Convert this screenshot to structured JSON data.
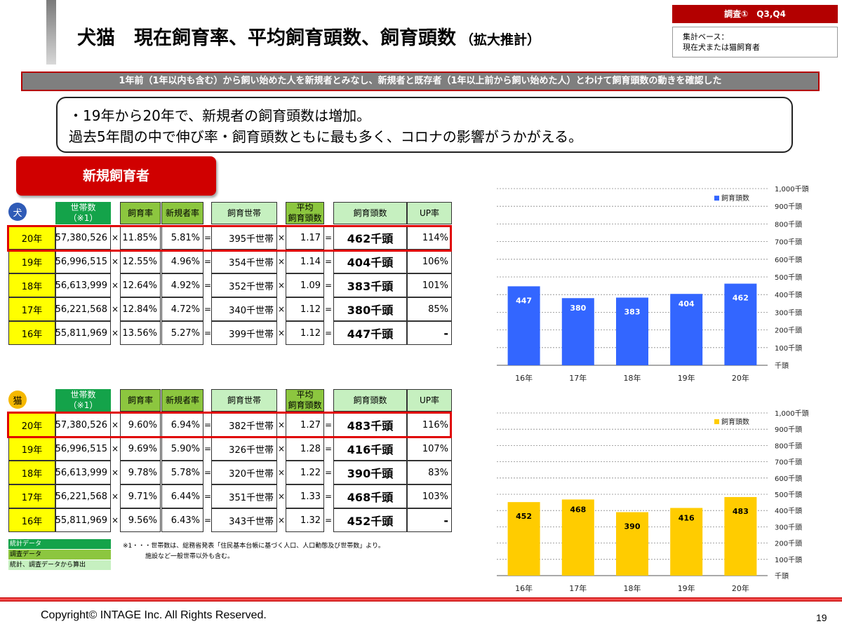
{
  "header": {
    "title": "犬猫　現在飼育率、平均飼育頭数、飼育頭数",
    "title_suffix": "（拡大推計）",
    "survey_tag": "調査①　Q3,Q4",
    "base_label": "集計ベース：",
    "base_value": "現在犬または猫飼育者"
  },
  "banner": "1年前（1年以内も含む）から飼い始めた人を新規者とみなし、新規者と既存者（1年以上前から飼い始めた人）とわけて飼育頭数の動きを確認した",
  "summary": {
    "line1": "・19年から20年で、新規者の飼育頭数は増加。",
    "line2": "過去5年間の中で伸び率・飼育頭数ともに最も多く、コロナの影響がうかがえる。"
  },
  "segment_label": "新規飼育者",
  "table_headers": {
    "households": "世帯数",
    "households_note": "（※1）",
    "rate": "飼育率",
    "new_rate": "新規者率",
    "pet_households": "飼育世帯",
    "avg_line1": "平均",
    "avg_line2": "飼育頭数",
    "count": "飼育頭数",
    "up": "UP率"
  },
  "ops": {
    "times": "×",
    "equals": "="
  },
  "dog": {
    "icon_label": "犬",
    "rows": [
      {
        "year": "20年",
        "households": "57,380,526",
        "rate": "11.85%",
        "new_rate": "5.81%",
        "pet_households": "395千世帯",
        "avg": "1.17",
        "count": "462千頭",
        "up": "114%"
      },
      {
        "year": "19年",
        "households": "56,996,515",
        "rate": "12.55%",
        "new_rate": "4.96%",
        "pet_households": "354千世帯",
        "avg": "1.14",
        "count": "404千頭",
        "up": "106%"
      },
      {
        "year": "18年",
        "households": "56,613,999",
        "rate": "12.64%",
        "new_rate": "4.92%",
        "pet_households": "352千世帯",
        "avg": "1.09",
        "count": "383千頭",
        "up": "101%"
      },
      {
        "year": "17年",
        "households": "56,221,568",
        "rate": "12.84%",
        "new_rate": "4.72%",
        "pet_households": "340千世帯",
        "avg": "1.12",
        "count": "380千頭",
        "up": "85%"
      },
      {
        "year": "16年",
        "households": "55,811,969",
        "rate": "13.56%",
        "new_rate": "5.27%",
        "pet_households": "399千世帯",
        "avg": "1.12",
        "count": "447千頭",
        "up": "-"
      }
    ]
  },
  "cat": {
    "icon_label": "猫",
    "rows": [
      {
        "year": "20年",
        "households": "57,380,526",
        "rate": "9.60%",
        "new_rate": "6.94%",
        "pet_households": "382千世帯",
        "avg": "1.27",
        "count": "483千頭",
        "up": "116%"
      },
      {
        "year": "19年",
        "households": "56,996,515",
        "rate": "9.69%",
        "new_rate": "5.90%",
        "pet_households": "326千世帯",
        "avg": "1.28",
        "count": "416千頭",
        "up": "107%"
      },
      {
        "year": "18年",
        "households": "56,613,999",
        "rate": "9.78%",
        "new_rate": "5.78%",
        "pet_households": "320千世帯",
        "avg": "1.22",
        "count": "390千頭",
        "up": "83%"
      },
      {
        "year": "17年",
        "households": "56,221,568",
        "rate": "9.71%",
        "new_rate": "6.44%",
        "pet_households": "351千世帯",
        "avg": "1.33",
        "count": "468千頭",
        "up": "103%"
      },
      {
        "year": "16年",
        "households": "55,811,969",
        "rate": "9.56%",
        "new_rate": "6.43%",
        "pet_households": "343千世帯",
        "avg": "1.32",
        "count": "452千頭",
        "up": "-"
      }
    ]
  },
  "legend_notes": {
    "stat": "統計データ",
    "survey": "調査データ",
    "calc": "統計、調査データから算出"
  },
  "footnote": {
    "line1": "※1・・・世帯数は、総務省発表「住民基本台帳に基づく人口、人口動態及び世帯数」より。",
    "line2": "施設など一般世帯以外も含む。"
  },
  "colors": {
    "accent_red": "#c00000",
    "dog_bar": "#3366ff",
    "cat_bar": "#ffcc00",
    "stat_green": "#14a34a",
    "survey_green": "#8cc63f",
    "calc_green": "#c6f0c0",
    "year_yellow": "#ffff00"
  },
  "chart_data": [
    {
      "type": "bar",
      "categories": [
        "16年",
        "17年",
        "18年",
        "19年",
        "20年"
      ],
      "series": [
        {
          "name": "飼育頭数",
          "values": [
            447,
            380,
            383,
            404,
            462
          ]
        }
      ],
      "value_labels": [
        "447",
        "380",
        "383",
        "404",
        "462"
      ],
      "y_ticks": [
        "千頭",
        "100千頭",
        "200千頭",
        "300千頭",
        "400千頭",
        "500千頭",
        "600千頭",
        "700千頭",
        "800千頭",
        "900千頭",
        "1,000千頭"
      ],
      "ylim": [
        0,
        1000
      ],
      "grid": true,
      "legend": "top-right",
      "color": "#3366ff"
    },
    {
      "type": "bar",
      "categories": [
        "16年",
        "17年",
        "18年",
        "19年",
        "20年"
      ],
      "series": [
        {
          "name": "飼育頭数",
          "values": [
            452,
            468,
            390,
            416,
            483
          ]
        }
      ],
      "value_labels": [
        "452",
        "468",
        "390",
        "416",
        "483"
      ],
      "y_ticks": [
        "千頭",
        "100千頭",
        "200千頭",
        "300千頭",
        "400千頭",
        "500千頭",
        "600千頭",
        "700千頭",
        "800千頭",
        "900千頭",
        "1,000千頭"
      ],
      "ylim": [
        0,
        1000
      ],
      "grid": true,
      "legend": "top-right",
      "color": "#ffcc00"
    }
  ],
  "copyright": "Copyright© INTAGE Inc. All Rights Reserved.",
  "page_number": "19"
}
